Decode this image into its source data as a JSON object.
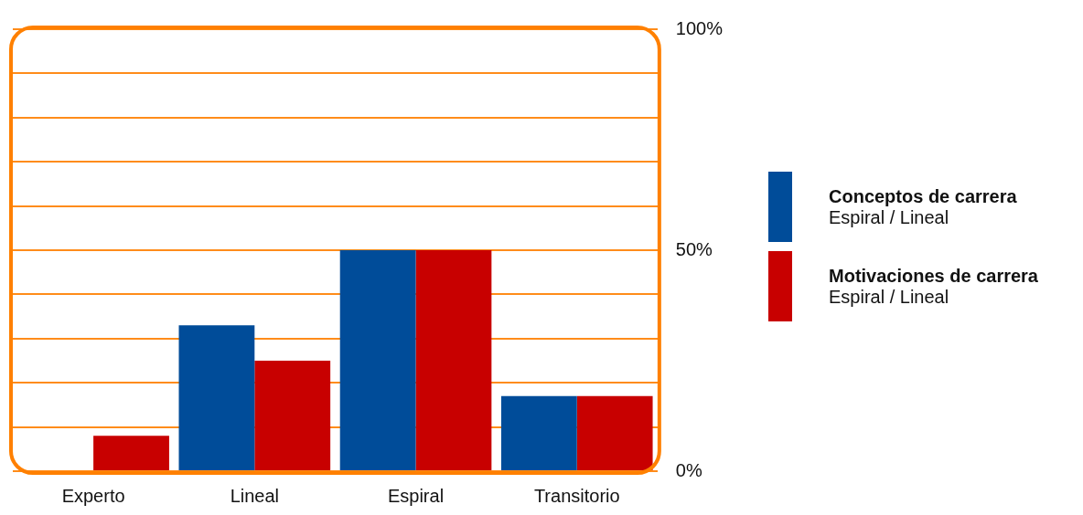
{
  "chart_data": {
    "type": "bar",
    "categories": [
      "Experto",
      "Lineal",
      "Espiral",
      "Transitorio"
    ],
    "series": [
      {
        "name": "Conceptos de carrera\nEspiral / Lineal",
        "color": "#004c99",
        "values": [
          0,
          33,
          50,
          17
        ]
      },
      {
        "name": "Motivaciones de carrera\nEspiral / Lineal",
        "color": "#c80000",
        "values": [
          8,
          25,
          50,
          17
        ]
      }
    ],
    "ylim": [
      0,
      100
    ],
    "yticks": [
      {
        "value": 0,
        "label": "0%"
      },
      {
        "value": 10,
        "label": null
      },
      {
        "value": 20,
        "label": null
      },
      {
        "value": 30,
        "label": null
      },
      {
        "value": 40,
        "label": null
      },
      {
        "value": 50,
        "label": "50%"
      },
      {
        "value": 60,
        "label": null
      },
      {
        "value": 70,
        "label": null
      },
      {
        "value": 80,
        "label": null
      },
      {
        "value": 90,
        "label": null
      },
      {
        "value": 100,
        "label": "100%"
      }
    ],
    "grid": "y",
    "legend": "right"
  }
}
